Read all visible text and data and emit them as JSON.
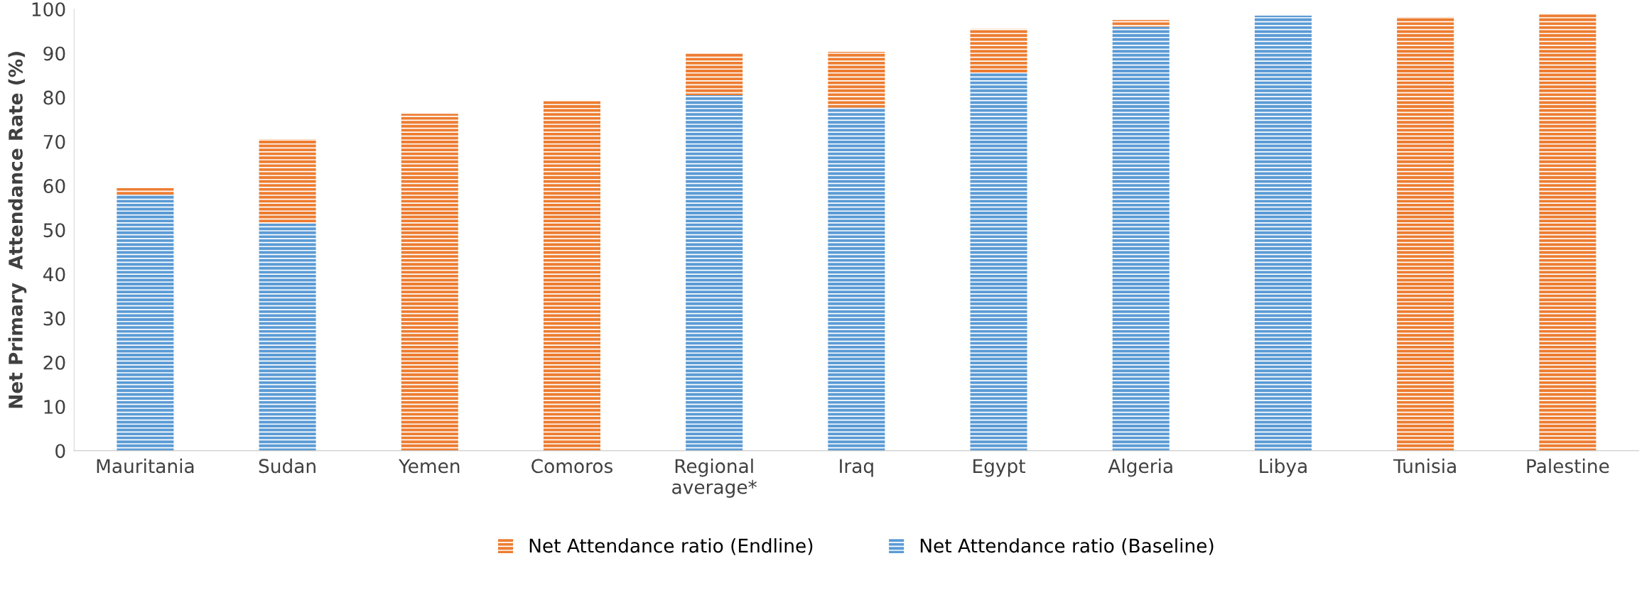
{
  "chart_data": {
    "type": "bar",
    "stacked": true,
    "ylabel": "Net Primary  Attendance Rate (%)",
    "categories": [
      "Mauritania",
      "Sudan",
      "Yemen",
      "Comoros",
      "Regional\naverage*",
      "Iraq",
      "Egypt",
      "Algeria",
      "Libya",
      "Tunisia",
      "Palestine"
    ],
    "series": [
      {
        "name": "Net Attendance ratio (Baseline)",
        "color": "#5b9bd5",
        "values": [
          58,
          51.5,
          null,
          null,
          80.5,
          77.7,
          85.5,
          96,
          98.5,
          null,
          null
        ]
      },
      {
        "name": "Net Attendance ratio (Endline)",
        "color": "#ed7d31",
        "values": [
          1.5,
          19,
          76.3,
          79.2,
          9.5,
          12.6,
          10,
          1.5,
          null,
          98.2,
          98.8
        ]
      }
    ],
    "ylim": [
      0,
      100
    ],
    "yticks": [
      0,
      10,
      20,
      30,
      40,
      50,
      60,
      70,
      80,
      90,
      100
    ],
    "grid": false,
    "legend": "bottom"
  }
}
